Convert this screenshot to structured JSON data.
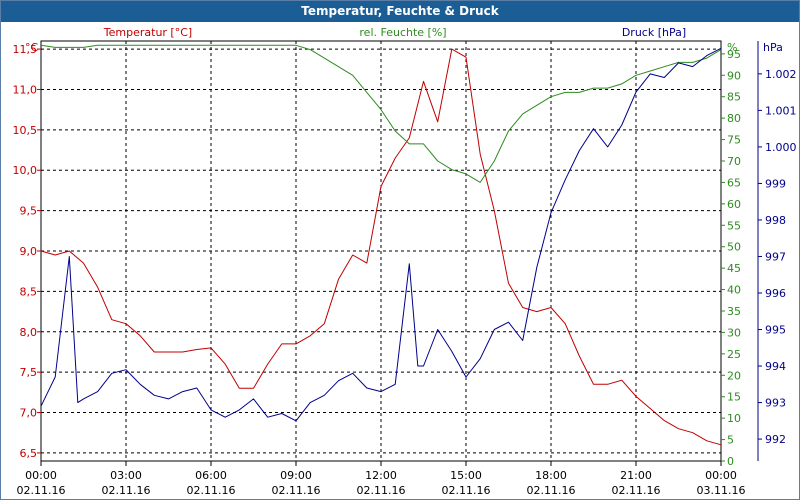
{
  "window": {
    "title": "Temperatur, Feuchte & Druck"
  },
  "chart_data": {
    "type": "line",
    "title": "Temperatur, Feuchte & Druck",
    "x_ticks": [
      {
        "time": "00:00",
        "date": "02.11.16"
      },
      {
        "time": "03:00",
        "date": "02.11.16"
      },
      {
        "time": "06:00",
        "date": "02.11.16"
      },
      {
        "time": "09:00",
        "date": "02.11.16"
      },
      {
        "time": "12:00",
        "date": "02.11.16"
      },
      {
        "time": "15:00",
        "date": "02.11.16"
      },
      {
        "time": "18:00",
        "date": "02.11.16"
      },
      {
        "time": "21:00",
        "date": "02.11.16"
      },
      {
        "time": "00:00",
        "date": "03.11.16"
      }
    ],
    "xlim": [
      0,
      24
    ],
    "grid": true,
    "axes": {
      "temperature": {
        "label": "Temperatur [°C]",
        "unit": "°C",
        "color": "#c00000",
        "ylim": [
          6.4,
          11.6
        ],
        "ticks": [
          "6,5",
          "7,0",
          "7,5",
          "8,0",
          "8,5",
          "9,0",
          "9,5",
          "10,0",
          "10,5",
          "11,0",
          "11,5"
        ]
      },
      "humidity": {
        "label": "rel. Feuchte [%]",
        "unit": "%",
        "color": "#2e8b20",
        "ylim": [
          0,
          98
        ],
        "ticks": [
          "0",
          "5",
          "10",
          "15",
          "20",
          "25",
          "30",
          "35",
          "40",
          "45",
          "50",
          "55",
          "60",
          "65",
          "70",
          "75",
          "80",
          "85",
          "90",
          "95"
        ]
      },
      "pressure": {
        "label": "Druck [hPa]",
        "unit": "hPa",
        "color": "#00008b",
        "ylim": [
          991.4,
          1002.9
        ],
        "ticks": [
          "992",
          "993",
          "994",
          "995",
          "996",
          "997",
          "998",
          "999",
          "1.000",
          "1.001",
          "1.002"
        ]
      }
    },
    "series": [
      {
        "name": "Temperatur [°C]",
        "axis": "temperature",
        "color": "#c00000",
        "x": [
          0,
          0.5,
          1,
          1.5,
          2,
          2.5,
          3,
          3.5,
          4,
          4.5,
          5,
          5.5,
          6,
          6.5,
          7,
          7.5,
          8,
          8.5,
          9,
          9.5,
          10,
          10.5,
          11,
          11.5,
          12,
          12.5,
          13,
          13.5,
          14,
          14.5,
          15,
          15.5,
          16,
          16.5,
          17,
          17.5,
          18,
          18.5,
          19,
          19.5,
          20,
          20.5,
          21,
          21.5,
          22,
          22.5,
          23,
          23.5,
          24
        ],
        "values": [
          9.0,
          8.95,
          9.0,
          8.85,
          8.55,
          8.15,
          8.1,
          7.95,
          7.75,
          7.75,
          7.75,
          7.78,
          7.8,
          7.6,
          7.3,
          7.3,
          7.6,
          7.85,
          7.85,
          7.95,
          8.1,
          8.65,
          8.95,
          8.85,
          9.8,
          10.15,
          10.4,
          11.1,
          10.6,
          11.5,
          11.4,
          10.2,
          9.5,
          8.6,
          8.3,
          8.25,
          8.3,
          8.1,
          7.7,
          7.35,
          7.35,
          7.4,
          7.2,
          7.05,
          6.9,
          6.8,
          6.75,
          6.65,
          6.6
        ]
      },
      {
        "name": "rel. Feuchte [%]",
        "axis": "humidity",
        "color": "#2e8b20",
        "x": [
          0,
          0.5,
          1,
          1.5,
          2,
          2.5,
          3,
          3.5,
          4,
          4.5,
          5,
          5.5,
          6,
          6.5,
          7,
          7.5,
          8,
          8.5,
          9,
          9.5,
          10,
          10.5,
          11,
          11.5,
          12,
          12.5,
          13,
          13.5,
          14,
          14.5,
          15,
          15.5,
          16,
          16.5,
          17,
          17.5,
          18,
          18.5,
          19,
          19.5,
          20,
          20.5,
          21,
          21.5,
          22,
          22.5,
          23,
          23.5,
          24
        ],
        "values": [
          97,
          96.5,
          96.5,
          96.5,
          97,
          97,
          97,
          97,
          97,
          97,
          97,
          97,
          97,
          97,
          97,
          97,
          97,
          97,
          97,
          96,
          94,
          92,
          90,
          86,
          82,
          77,
          74,
          74,
          70,
          68,
          67,
          65,
          70,
          77,
          81,
          83,
          85,
          86,
          86,
          87,
          87,
          88,
          90,
          91,
          92,
          93,
          93,
          94,
          96
        ]
      },
      {
        "name": "Druck [hPa]",
        "axis": "pressure",
        "color": "#00008b",
        "x": [
          0,
          0.5,
          1,
          1.3,
          1.5,
          2,
          2.5,
          3,
          3.5,
          4,
          4.5,
          5,
          5.5,
          6,
          6.5,
          7,
          7.5,
          8,
          8.5,
          9,
          9.5,
          10,
          10.5,
          11,
          11.5,
          12,
          12.5,
          13,
          13.3,
          13.5,
          14,
          14.5,
          15,
          15.5,
          16,
          16.5,
          17,
          17.5,
          18,
          18.5,
          19,
          19.5,
          20,
          20.5,
          21,
          21.5,
          22,
          22.5,
          23,
          23.5,
          24
        ],
        "values": [
          992.9,
          993.7,
          997.0,
          993.0,
          993.1,
          993.3,
          993.8,
          993.9,
          993.5,
          993.2,
          993.1,
          993.3,
          993.4,
          992.8,
          992.6,
          992.8,
          993.1,
          992.6,
          992.7,
          992.5,
          993.0,
          993.2,
          993.6,
          993.8,
          993.4,
          993.3,
          993.5,
          996.8,
          994.0,
          994.0,
          995.0,
          994.4,
          993.7,
          994.2,
          995.0,
          995.2,
          994.7,
          996.7,
          998.2,
          999.1,
          999.9,
          1000.5,
          1000.0,
          1000.6,
          1001.5,
          1002.0,
          1001.9,
          1002.3,
          1002.2,
          1002.5,
          1002.7
        ]
      }
    ]
  }
}
